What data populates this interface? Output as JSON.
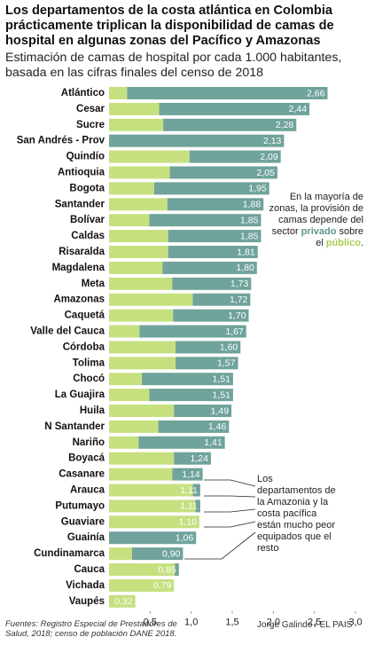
{
  "chart_data": {
    "type": "stacked-bar-horizontal",
    "title": "Los departamentos de la costa atlántica en Colombia prácticamente triplican la disponibilidad de camas de hospital en algunas zonas del Pacífico y Amazonas",
    "subtitle": "Estimación de camas de hospital por cada 1.000 habitantes, basada en las cifras finales del censo de 2018",
    "categories": [
      "Atlántico",
      "Cesar",
      "Sucre",
      "San Andrés - Prov",
      "Quindío",
      "Antioquia",
      "Bogota",
      "Santander",
      "Bolívar",
      "Caldas",
      "Risaralda",
      "Magdalena",
      "Meta",
      "Amazonas",
      "Caquetá",
      "Valle del Cauca",
      "Córdoba",
      "Tolima",
      "Chocó",
      "La Guajira",
      "Huila",
      "N Santander",
      "Nariño",
      "Boyacá",
      "Casanare",
      "Arauca",
      "Putumayo",
      "Guaviare",
      "Guainía",
      "Cundinamarca",
      "Cauca",
      "Vichada",
      "Vaupés"
    ],
    "series": [
      {
        "name": "público",
        "color": "#c6e07f",
        "values": [
          0.22,
          0.61,
          0.66,
          0,
          0.98,
          0.74,
          0.55,
          0.71,
          0.49,
          0.72,
          0.72,
          0.65,
          0.77,
          1.02,
          0.78,
          0.37,
          0.81,
          0.81,
          0.4,
          0.49,
          0.79,
          0.6,
          0.36,
          0.79,
          0.77,
          1.02,
          1.05,
          1.1,
          0,
          0.28,
          0.8,
          0.79,
          0.32
        ]
      },
      {
        "name": "privado",
        "color": "#6fa39b",
        "values": [
          2.44,
          1.83,
          1.62,
          2.13,
          1.11,
          1.31,
          1.4,
          1.17,
          1.36,
          1.13,
          1.09,
          1.15,
          0.96,
          0.7,
          0.92,
          1.3,
          0.79,
          0.76,
          1.11,
          1.02,
          0.7,
          0.86,
          1.05,
          0.45,
          0.37,
          0.09,
          0.06,
          0,
          1.06,
          0.62,
          0.05,
          0,
          0
        ]
      }
    ],
    "totals": [
      2.66,
      2.44,
      2.28,
      2.13,
      2.09,
      2.05,
      1.95,
      1.88,
      1.85,
      1.85,
      1.81,
      1.8,
      1.73,
      1.72,
      1.7,
      1.67,
      1.6,
      1.57,
      1.51,
      1.51,
      1.49,
      1.46,
      1.41,
      1.24,
      1.14,
      1.11,
      1.11,
      1.1,
      1.06,
      0.9,
      0.85,
      0.79,
      0.32
    ],
    "value_labels": [
      "2,66",
      "2,44",
      "2,28",
      "2,13",
      "2,09",
      "2,05",
      "1,95",
      "1,88",
      "1,85",
      "1,85",
      "1,81",
      "1,80",
      "1,73",
      "1,72",
      "1,70",
      "1,67",
      "1,60",
      "1,57",
      "1,51",
      "1,51",
      "1,49",
      "1,46",
      "1,41",
      "1,24",
      "1,14",
      "1,11",
      "1,11",
      "1,10",
      "1,06",
      "0,90",
      "0,85",
      "0,79",
      "0,32"
    ],
    "xlim": [
      0,
      3.0
    ],
    "xticks": [
      {
        "value": 0.5,
        "label": "0,5"
      },
      {
        "value": 1.0,
        "label": "1,0"
      },
      {
        "value": 1.5,
        "label": "1,5"
      },
      {
        "value": 2.0,
        "label": "2,0"
      },
      {
        "value": 2.5,
        "label": "2,5"
      },
      {
        "value": 3.0,
        "label": "3,0"
      }
    ],
    "annotations": [
      {
        "parts": [
          "En la mayoría de zonas, la provisión de camas depende del sector ",
          "privado",
          " sobre el ",
          "público",
          "."
        ]
      },
      {
        "parts": [
          "Los departamentos de la Amazonia y la costa pacífica están mucho peor equipados que el resto"
        ]
      }
    ],
    "source": "Fuentes: Registro Especial de Prestadores de Salud, 2018; censo de población DANE 2018.",
    "credit": "Jorge Galindo / EL PAIS"
  }
}
